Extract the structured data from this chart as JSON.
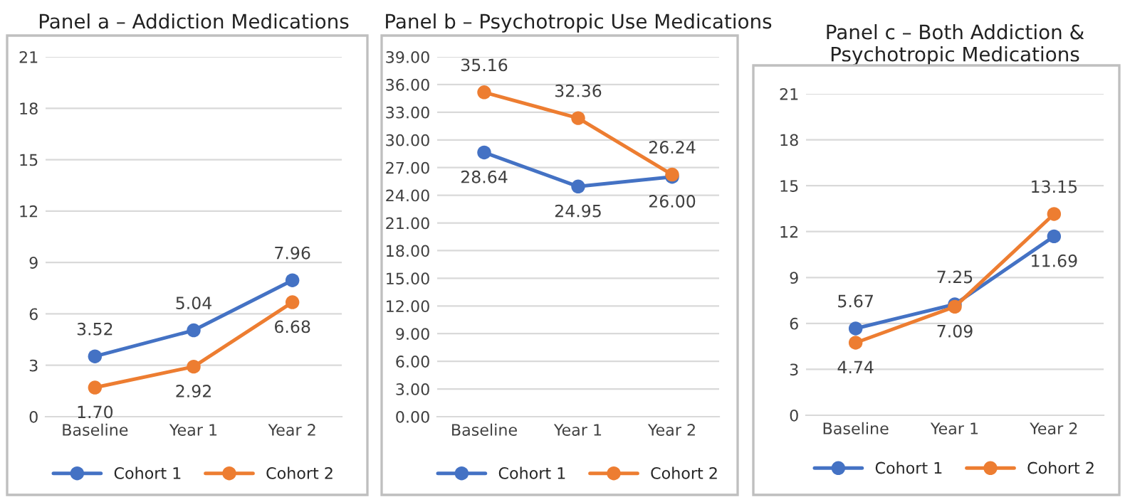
{
  "chart_data": [
    {
      "type": "line",
      "title": "Panel a – Addiction Medications",
      "categories": [
        "Baseline",
        "Year 1",
        "Year 2"
      ],
      "series": [
        {
          "name": "Cohort 1",
          "color": "#4472c4",
          "values": [
            3.52,
            5.04,
            7.96
          ],
          "value_labels": [
            "3.52",
            "5.04",
            "7.96"
          ]
        },
        {
          "name": "Cohort 2",
          "color": "#ed7d31",
          "values": [
            1.7,
            2.92,
            6.68
          ],
          "value_labels": [
            "1.70",
            "2.92",
            "6.68"
          ]
        }
      ],
      "ylim": [
        0,
        21
      ],
      "yticks": [
        0,
        3,
        6,
        9,
        12,
        15,
        18,
        21
      ],
      "grid": "y",
      "legend": "bottom",
      "marker": "circle",
      "line_style": "solid"
    },
    {
      "type": "line",
      "title": "Panel b – Psychotropic Use Medications",
      "categories": [
        "Baseline",
        "Year 1",
        "Year 2"
      ],
      "series": [
        {
          "name": "Cohort 1",
          "color": "#4472c4",
          "values": [
            28.64,
            24.95,
            26.0
          ],
          "value_labels": [
            "28.64",
            "24.95",
            "26.00"
          ]
        },
        {
          "name": "Cohort 2",
          "color": "#ed7d31",
          "values": [
            35.16,
            32.36,
            26.24
          ],
          "value_labels": [
            "35.16",
            "32.36",
            "26.24"
          ]
        }
      ],
      "ylim": [
        0,
        39
      ],
      "yticks": [
        {
          "value": 0,
          "label": "0.00"
        },
        {
          "value": 3,
          "label": "3.00"
        },
        {
          "value": 6,
          "label": "6.00"
        },
        {
          "value": 9,
          "label": "9.00"
        },
        {
          "value": 12,
          "label": "12.00"
        },
        {
          "value": 15,
          "label": "15.00"
        },
        {
          "value": 18,
          "label": "18.00"
        },
        {
          "value": 21,
          "label": "21.00"
        },
        {
          "value": 24,
          "label": "24.00"
        },
        {
          "value": 27,
          "label": "27.00"
        },
        {
          "value": 30,
          "label": "30.00"
        },
        {
          "value": 33,
          "label": "33.00"
        },
        {
          "value": 36,
          "label": "36.00"
        },
        {
          "value": 39,
          "label": "39.00"
        }
      ],
      "grid": "y",
      "legend": "bottom",
      "marker": "circle",
      "line_style": "solid"
    },
    {
      "type": "line",
      "title": "Panel c – Both Addiction & Psychotropic Medications",
      "categories": [
        "Baseline",
        "Year 1",
        "Year 2"
      ],
      "series": [
        {
          "name": "Cohort 1",
          "color": "#4472c4",
          "values": [
            5.67,
            7.25,
            11.69
          ],
          "value_labels": [
            "5.67",
            "7.25",
            "11.69"
          ]
        },
        {
          "name": "Cohort 2",
          "color": "#ed7d31",
          "values": [
            4.74,
            7.09,
            13.15
          ],
          "value_labels": [
            "4.74",
            "7.09",
            "13.15"
          ]
        }
      ],
      "ylim": [
        0,
        21
      ],
      "yticks": [
        0,
        3,
        6,
        9,
        12,
        15,
        18,
        21
      ],
      "grid": "y",
      "legend": "bottom",
      "marker": "circle",
      "line_style": "solid"
    }
  ]
}
